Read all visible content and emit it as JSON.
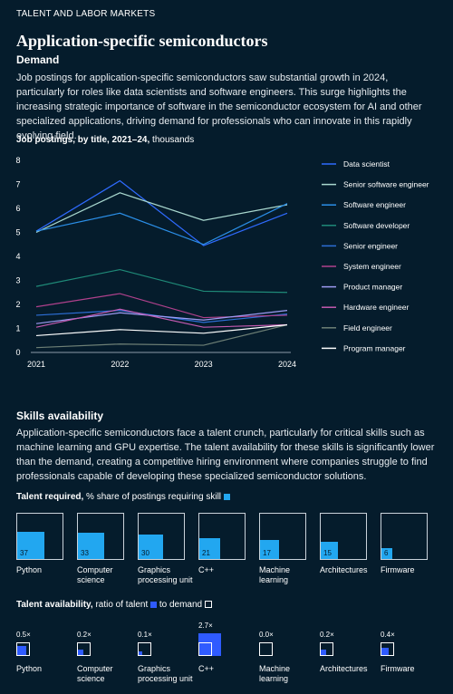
{
  "kicker": "TALENT AND LABOR MARKETS",
  "title": "Application-specific semiconductors",
  "demand": {
    "heading": "Demand",
    "text": "Job postings for application-specific semiconductors saw substantial growth in 2024, particularly for roles like data scientists and software engineers. This surge highlights the increasing strategic importance of software in the semiconductor ecosystem for AI and other specialized applications, driving demand for professionals who can innovate in this rapidly evolving field."
  },
  "line_chart_title_bold": "Job postings, by title, 2021–24,",
  "line_chart_title_unit": " thousands",
  "skills": {
    "heading": "Skills availability",
    "text": "Application-specific semiconductors face a talent crunch, particularly for critical skills such as machine learning and GPU expertise. The talent availability for these skills is significantly lower than the demand, creating a competitive hiring environment where companies struggle to find professionals capable of developing these specialized semiconductor solutions."
  },
  "talent_required": {
    "title_bold": "Talent required,",
    "title_rest": " % share of postings requiring skill"
  },
  "talent_availability": {
    "title_bold": "Talent availability,",
    "title_mid": " ratio of talent ",
    "title_end": " to demand "
  },
  "colors": {
    "background": "#051c2c",
    "required_fill": "#22a7f0",
    "availability_fill": "#2f5bff",
    "tile_border": "#c9d2da"
  },
  "chart_data": [
    {
      "type": "line",
      "x": [
        "2021",
        "2022",
        "2023",
        "2024"
      ],
      "ylim": [
        0,
        8
      ],
      "yticks": [
        0,
        1,
        2,
        3,
        4,
        5,
        6,
        7,
        8
      ],
      "grid": false,
      "legend_position": "right",
      "series": [
        {
          "name": "Data scientist",
          "color": "#2f6bff",
          "values": [
            5.05,
            7.15,
            4.45,
            5.8
          ]
        },
        {
          "name": "Senior software engineer",
          "color": "#a9d8cf",
          "values": [
            5.0,
            6.65,
            5.5,
            6.15
          ]
        },
        {
          "name": "Software engineer",
          "color": "#2b8fe8",
          "values": [
            5.05,
            5.8,
            4.5,
            6.2
          ]
        },
        {
          "name": "Software developer",
          "color": "#1f8a78",
          "values": [
            2.75,
            3.45,
            2.55,
            2.5
          ]
        },
        {
          "name": "Senior engineer",
          "color": "#2d6fd6",
          "values": [
            1.55,
            1.75,
            1.25,
            1.6
          ]
        },
        {
          "name": "System engineer",
          "color": "#b0418c",
          "values": [
            1.9,
            2.45,
            1.45,
            1.55
          ]
        },
        {
          "name": "Product manager",
          "color": "#9d9bf2",
          "values": [
            1.2,
            1.65,
            1.35,
            1.75
          ]
        },
        {
          "name": "Hardware engineer",
          "color": "#c45ab0",
          "values": [
            1.05,
            1.8,
            1.05,
            1.15
          ]
        },
        {
          "name": "Field engineer",
          "color": "#6e8076",
          "values": [
            0.2,
            0.35,
            0.3,
            1.15
          ]
        },
        {
          "name": "Program manager",
          "color": "#ffffff",
          "values": [
            0.7,
            0.95,
            0.8,
            1.15
          ]
        }
      ]
    },
    {
      "type": "bar",
      "categories": [
        "Python",
        "Computer science",
        "Graphics processing unit",
        "C++",
        "Machine learning",
        "Architectures",
        "Firmware"
      ],
      "values": [
        37,
        33,
        30,
        21,
        17,
        15,
        6
      ],
      "unit": "%"
    },
    {
      "type": "bar",
      "categories": [
        "Python",
        "Computer science",
        "Graphics processing unit",
        "C++",
        "Machine learning",
        "Architectures",
        "Firmware"
      ],
      "values": [
        0.5,
        0.2,
        0.1,
        2.7,
        0.0,
        0.2,
        0.4
      ],
      "labels": [
        "0.5×",
        "0.2×",
        "0.1×",
        "2.7×",
        "0.0×",
        "0.2×",
        "0.4×"
      ]
    }
  ]
}
